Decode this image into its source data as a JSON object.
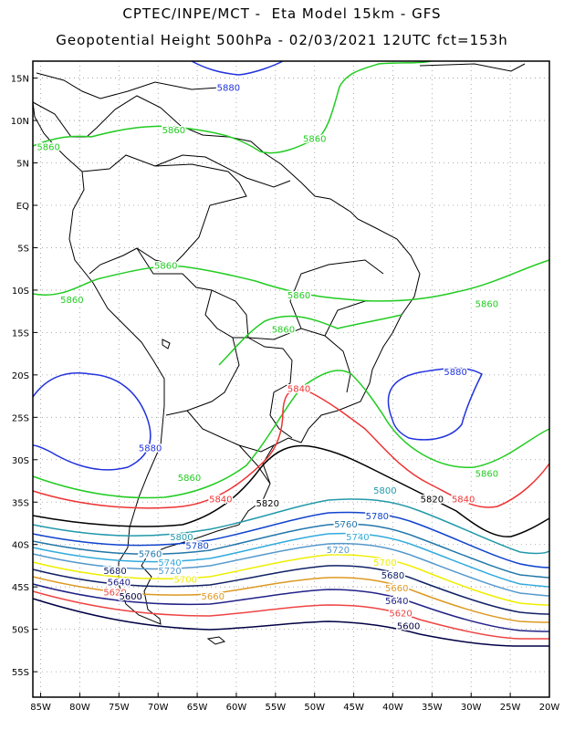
{
  "header": {
    "line1": "CPTEC/INPE/MCT -  Eta Model 15km - GFS",
    "line2": "Geopotential Height 500hPa - 02/03/2021 12UTC fct=153h"
  },
  "axes": {
    "lon_labels": [
      "85W",
      "80W",
      "75W",
      "70W",
      "65W",
      "60W",
      "55W",
      "50W",
      "45W",
      "40W",
      "35W",
      "30W",
      "25W",
      "20W"
    ],
    "lon_values": [
      -85,
      -80,
      -75,
      -70,
      -65,
      -60,
      -55,
      -50,
      -45,
      -40,
      -35,
      -30,
      -25,
      -20
    ],
    "lat_labels": [
      "15N",
      "10N",
      "5N",
      "EQ",
      "5S",
      "10S",
      "15S",
      "20S",
      "25S",
      "30S",
      "35S",
      "40S",
      "45S",
      "50S",
      "55S"
    ],
    "lat_values": [
      15,
      10,
      5,
      0,
      -5,
      -10,
      -15,
      -20,
      -25,
      -30,
      -35,
      -40,
      -45,
      -50,
      -55
    ],
    "lon_range": [
      -86,
      -20
    ],
    "lat_range": [
      -58,
      17
    ],
    "grid": "dotted"
  },
  "colors": {
    "c5880": "#2233dd",
    "c5860": "#22cc22",
    "c5840": "#ee3333",
    "c5820": "#000000",
    "c5800": "#2299aa",
    "c5780": "#1144cc",
    "c5760": "#2277aa",
    "c5740": "#33aadd",
    "c5720": "#5599cc",
    "c5700": "#eeee00",
    "c5680": "#112266",
    "c5660": "#dd9922",
    "c5640": "#222288",
    "c5620": "#ee4444",
    "c5600": "#000044",
    "coast": "#000000"
  },
  "contour_labels": [
    {
      "text": "5880",
      "color": "c5880",
      "lon": -61,
      "lat": 13.5
    },
    {
      "text": "5860",
      "color": "c5860",
      "lon": -84,
      "lat": 6.5
    },
    {
      "text": "5860",
      "color": "c5860",
      "lon": -68,
      "lat": 8.5
    },
    {
      "text": "5860",
      "color": "c5860",
      "lon": -50,
      "lat": 7.5
    },
    {
      "text": "5860",
      "color": "c5860",
      "lon": -69,
      "lat": -7.5
    },
    {
      "text": "5860",
      "color": "c5860",
      "lon": -81,
      "lat": -11.5
    },
    {
      "text": "5860",
      "color": "c5860",
      "lon": -52,
      "lat": -11
    },
    {
      "text": "5860",
      "color": "c5860",
      "lon": -54,
      "lat": -15
    },
    {
      "text": "5860",
      "color": "c5860",
      "lon": -28,
      "lat": -12
    },
    {
      "text": "5880",
      "color": "c5880",
      "lon": -32,
      "lat": -20
    },
    {
      "text": "5840",
      "color": "c5840",
      "lon": -52,
      "lat": -22
    },
    {
      "text": "5880",
      "color": "c5880",
      "lon": -71,
      "lat": -29
    },
    {
      "text": "5860",
      "color": "c5860",
      "lon": -66,
      "lat": -32.5
    },
    {
      "text": "5860",
      "color": "c5860",
      "lon": -28,
      "lat": -32
    },
    {
      "text": "5840",
      "color": "c5840",
      "lon": -62,
      "lat": -35
    },
    {
      "text": "5820",
      "color": "c5820",
      "lon": -56,
      "lat": -35.5
    },
    {
      "text": "5800",
      "color": "c5800",
      "lon": -41,
      "lat": -34
    },
    {
      "text": "5820",
      "color": "c5820",
      "lon": -35,
      "lat": -35
    },
    {
      "text": "5840",
      "color": "c5840",
      "lon": -31,
      "lat": -35
    },
    {
      "text": "5760",
      "color": "c5760",
      "lon": -46,
      "lat": -38
    },
    {
      "text": "5780",
      "color": "c5780",
      "lon": -42,
      "lat": -37
    },
    {
      "text": "5740",
      "color": "c5740",
      "lon": -44.5,
      "lat": -39.5
    },
    {
      "text": "5800",
      "color": "c5800",
      "lon": -67,
      "lat": -39.5
    },
    {
      "text": "5780",
      "color": "c5780",
      "lon": -65,
      "lat": -40.5
    },
    {
      "text": "5760",
      "color": "c5760",
      "lon": -71,
      "lat": -41.5
    },
    {
      "text": "5720",
      "color": "c5720",
      "lon": -47,
      "lat": -41
    },
    {
      "text": "5740",
      "color": "c5740",
      "lon": -68.5,
      "lat": -42.5
    },
    {
      "text": "5720",
      "color": "c5720",
      "lon": -68.5,
      "lat": -43.5
    },
    {
      "text": "5700",
      "color": "c5700",
      "lon": -41,
      "lat": -42.5
    },
    {
      "text": "5700",
      "color": "c5700",
      "lon": -66.5,
      "lat": -44.5
    },
    {
      "text": "5680",
      "color": "c5680",
      "lon": -75.5,
      "lat": -43.5
    },
    {
      "text": "5680",
      "color": "c5680",
      "lon": -40,
      "lat": -44
    },
    {
      "text": "5640",
      "color": "c5640",
      "lon": -75,
      "lat": -44.8
    },
    {
      "text": "5660",
      "color": "c5660",
      "lon": -39.5,
      "lat": -45.5
    },
    {
      "text": "5620",
      "color": "c5620",
      "lon": -75.5,
      "lat": -46
    },
    {
      "text": "5660",
      "color": "c5660",
      "lon": -63,
      "lat": -46.5
    },
    {
      "text": "5600",
      "color": "c5600",
      "lon": -73.5,
      "lat": -46.5
    },
    {
      "text": "5640",
      "color": "c5640",
      "lon": -39.5,
      "lat": -47
    },
    {
      "text": "5620",
      "color": "c5620",
      "lon": -39,
      "lat": -48.5
    },
    {
      "text": "5600",
      "color": "c5600",
      "lon": -38,
      "lat": -50
    }
  ]
}
